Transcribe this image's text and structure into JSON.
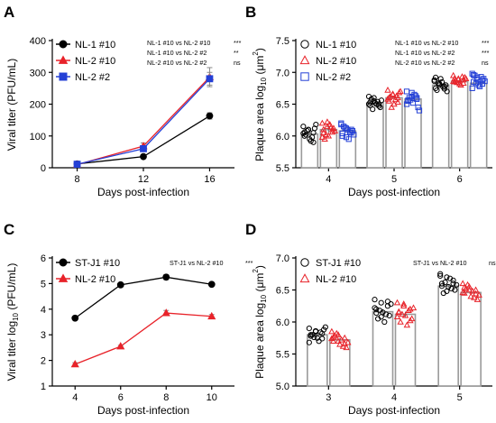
{
  "colors": {
    "black": "#000000",
    "red": "#e8232a",
    "blue": "#2440d6",
    "bar_fill": "#ffffff",
    "bar_edge": "#9a9a9a",
    "light_red": "#f06c6e"
  },
  "chart_data": [
    {
      "panel": "A",
      "type": "line",
      "xlabel": "Days post-infection",
      "ylabel": "Viral titer (PFU/mL)",
      "x": [
        8,
        12,
        16
      ],
      "xlim": [
        6.5,
        17.5
      ],
      "ylim": [
        0,
        400
      ],
      "yticks": [
        0,
        100,
        200,
        300,
        400
      ],
      "legend_position": "top-left",
      "series": [
        {
          "name": "NL-1 #10",
          "marker": "circle",
          "values": [
            12,
            35,
            163
          ],
          "errors": [
            2,
            4,
            10
          ]
        },
        {
          "name": "NL-2 #10",
          "marker": "triangle",
          "values": [
            10,
            68,
            285
          ],
          "errors": [
            2,
            10,
            30
          ]
        },
        {
          "name": "NL-2 #2",
          "marker": "square",
          "values": [
            11,
            60,
            280
          ],
          "errors": [
            2,
            8,
            20
          ]
        }
      ],
      "stats": [
        {
          "label": "NL-1 #10 vs NL-2 #10",
          "sig": "***"
        },
        {
          "label": "NL-1 #10 vs NL-2 #2",
          "sig": "**"
        },
        {
          "label": "NL-2 #10 vs NL-2 #2",
          "sig": "ns"
        }
      ]
    },
    {
      "panel": "B",
      "type": "bar",
      "xlabel": "Days post-infection",
      "ylabel_parts": [
        "Plaque area log",
        "10",
        " (μm",
        "2",
        ")"
      ],
      "categories": [
        "4",
        "5",
        "6"
      ],
      "ylim": [
        5.5,
        7.5
      ],
      "yticks": [
        5.5,
        6.0,
        6.5,
        7.0,
        7.5
      ],
      "legend_position": "top-left",
      "series": [
        {
          "name": "NL-1 #10",
          "marker": "circle",
          "values": [
            6.03,
            6.52,
            6.8
          ],
          "errors": [
            0.05,
            0.03,
            0.03
          ]
        },
        {
          "name": "NL-2 #10",
          "marker": "triangle",
          "values": [
            6.1,
            6.6,
            6.86
          ],
          "errors": [
            0.05,
            0.03,
            0.03
          ]
        },
        {
          "name": "NL-2 #2",
          "marker": "square",
          "values": [
            6.08,
            6.58,
            6.83
          ],
          "errors": [
            0.05,
            0.04,
            0.03
          ]
        }
      ],
      "points": [
        [
          [
            6.15,
            6.1,
            6.05,
            6.0,
            5.95,
            6.12,
            6.02,
            5.92,
            6.18,
            6.08,
            5.98,
            6.04,
            6.1,
            5.9,
            6.06
          ],
          [
            6.62,
            6.55,
            6.5,
            6.48,
            6.52,
            6.45,
            6.58,
            6.5,
            6.56,
            6.42,
            6.54,
            6.5,
            6.6,
            6.47,
            6.53
          ],
          [
            6.88,
            6.82,
            6.78,
            6.75,
            6.9,
            6.8,
            6.72,
            6.85,
            6.7,
            6.83,
            6.77,
            6.86,
            6.8,
            6.74,
            6.92
          ]
        ],
        [
          [
            6.2,
            6.15,
            6.1,
            6.05,
            6.0,
            6.12,
            5.95,
            6.18,
            6.08,
            6.02,
            6.14,
            5.98,
            6.22,
            6.06,
            6.1
          ],
          [
            6.72,
            6.65,
            6.6,
            6.55,
            6.5,
            6.68,
            6.62,
            6.57,
            6.7,
            6.45,
            6.63,
            6.58,
            6.66,
            6.53,
            6.6
          ],
          [
            6.95,
            6.9,
            6.88,
            6.85,
            6.82,
            6.92,
            6.87,
            6.8,
            6.9,
            6.84,
            6.93,
            6.86,
            6.89,
            6.83,
            6.9
          ]
        ],
        [
          [
            6.18,
            6.12,
            6.05,
            6.0,
            6.1,
            6.08,
            6.15,
            5.95,
            6.02,
            6.13,
            6.06,
            6.2,
            5.98,
            6.1,
            6.04
          ],
          [
            6.7,
            6.62,
            6.58,
            6.55,
            6.52,
            6.45,
            6.6,
            6.65,
            6.4,
            6.57,
            6.63,
            6.5,
            6.68,
            6.6,
            6.56
          ],
          [
            6.98,
            6.92,
            6.88,
            6.85,
            6.8,
            6.9,
            6.95,
            6.78,
            6.86,
            6.83,
            6.93,
            6.75,
            6.89,
            6.82,
            6.96
          ]
        ]
      ],
      "stats": [
        {
          "label": "NL-1 #10 vs NL-2 #10",
          "sig": "***"
        },
        {
          "label": "NL-1 #10 vs NL-2 #2",
          "sig": "***"
        },
        {
          "label": "NL-2 #10 vs NL-2 #2",
          "sig": "ns"
        }
      ]
    },
    {
      "panel": "C",
      "type": "line",
      "xlabel": "Days post-infection",
      "ylabel_parts": [
        "Viral titer log",
        "10",
        " (PFU/mL)"
      ],
      "x": [
        4,
        6,
        8,
        10
      ],
      "xlim": [
        3,
        11
      ],
      "ylim": [
        1,
        6
      ],
      "yticks": [
        1,
        2,
        3,
        4,
        5,
        6
      ],
      "legend_position": "top-left",
      "series": [
        {
          "name": "ST-J1 #10",
          "marker": "circle",
          "values": [
            3.65,
            4.95,
            5.25,
            4.97
          ],
          "errors": [
            0.06,
            0.04,
            0.1,
            0.03
          ]
        },
        {
          "name": "NL-2 #10",
          "marker": "triangle",
          "values": [
            1.85,
            2.55,
            3.85,
            3.72
          ],
          "errors": [
            0.06,
            0.04,
            0.1,
            0.07
          ]
        }
      ],
      "stats": [
        {
          "label": "ST-J1 vs NL-2 #10",
          "sig": "***"
        }
      ]
    },
    {
      "panel": "D",
      "type": "bar",
      "xlabel": "Days post-infection",
      "ylabel_parts": [
        "Plaque area log",
        "10",
        " (μm",
        "2",
        ")"
      ],
      "categories": [
        "3",
        "4",
        "5"
      ],
      "ylim": [
        5.0,
        7.0
      ],
      "yticks": [
        5.0,
        5.5,
        6.0,
        6.5,
        7.0
      ],
      "legend_position": "top-left",
      "series": [
        {
          "name": "ST-J1 #10",
          "marker": "circle",
          "values": [
            5.8,
            6.16,
            6.56
          ],
          "errors": [
            0.03,
            0.04,
            0.03
          ]
        },
        {
          "name": "NL-2 #10",
          "marker": "triangle",
          "values": [
            5.72,
            6.12,
            6.46
          ],
          "errors": [
            0.03,
            0.04,
            0.03
          ]
        }
      ],
      "points": [
        [
          [
            5.9,
            5.85,
            5.82,
            5.78,
            5.75,
            5.88,
            5.8,
            5.7,
            5.92,
            5.76,
            5.84,
            5.68,
            5.86,
            5.74,
            5.8
          ],
          [
            6.35,
            6.3,
            6.25,
            6.2,
            6.15,
            6.1,
            6.05,
            6.0,
            6.28,
            6.18,
            6.12,
            6.22,
            6.08,
            6.32,
            6.14
          ],
          [
            6.75,
            6.7,
            6.65,
            6.6,
            6.55,
            6.5,
            6.45,
            6.68,
            6.58,
            6.62,
            6.52,
            6.72,
            6.48,
            6.6,
            6.56
          ]
        ],
        [
          [
            5.85,
            5.8,
            5.75,
            5.7,
            5.65,
            5.6,
            5.78,
            5.72,
            5.68,
            5.82,
            5.62,
            5.74,
            5.7,
            5.66,
            5.76
          ],
          [
            6.3,
            6.25,
            6.2,
            6.15,
            6.1,
            6.05,
            6.0,
            5.95,
            6.22,
            6.12,
            6.18,
            6.08,
            6.28,
            6.02,
            6.16
          ],
          [
            6.6,
            6.55,
            6.5,
            6.45,
            6.4,
            6.35,
            6.52,
            6.48,
            6.42,
            6.58,
            6.38,
            6.46,
            6.5,
            6.44,
            6.54
          ]
        ]
      ],
      "stats": [
        {
          "label": "ST-J1 vs NL-2 #10",
          "sig": "ns"
        }
      ]
    }
  ]
}
